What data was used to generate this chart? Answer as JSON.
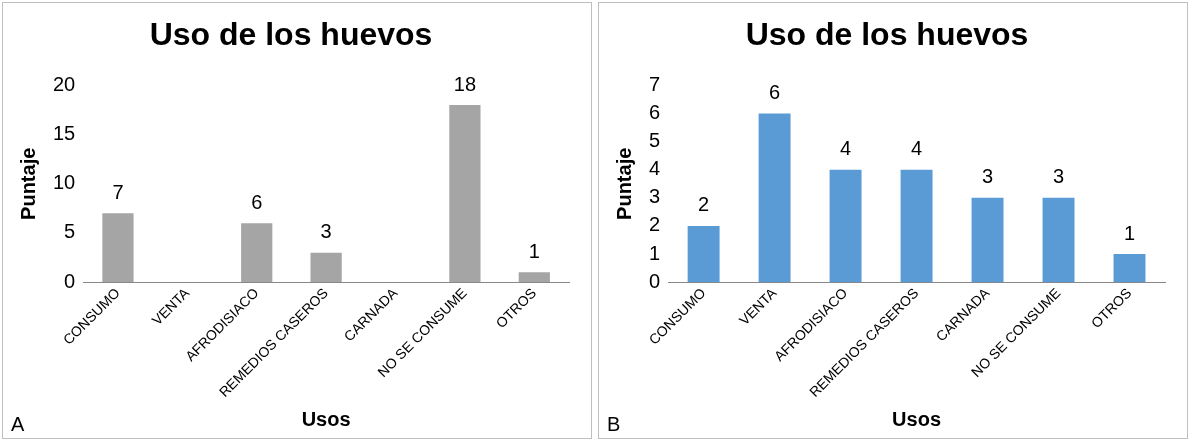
{
  "chart_data": [
    {
      "type": "bar",
      "title": "Uso de los huevos",
      "xlabel": "Usos",
      "ylabel": "Puntaje",
      "categories": [
        "CONSUMO",
        "VENTA",
        "AFRODISIACO",
        "REMEDIOS CASEROS",
        "CARNADA",
        "NO SE CONSUME",
        "OTROS"
      ],
      "values": [
        7,
        null,
        6,
        3,
        null,
        18,
        1
      ],
      "value_labels": [
        "7",
        null,
        "6",
        "3",
        null,
        "18",
        "1"
      ],
      "color": "#a5a5a5",
      "ylim": [
        0,
        20
      ],
      "yticks": [
        0,
        5,
        10,
        15,
        20
      ],
      "grid": false,
      "legend": false,
      "annotations": [
        "A"
      ]
    },
    {
      "type": "bar",
      "title": "Uso de los huevos",
      "xlabel": "Usos",
      "ylabel": "Puntaje",
      "categories": [
        "CONSUMO",
        "VENTA",
        "AFRODISIACO",
        "REMEDIOS CASEROS",
        "CARNADA",
        "NO SE CONSUME",
        "OTROS"
      ],
      "values": [
        2,
        6,
        4,
        4,
        3,
        3,
        1
      ],
      "data_labels": true,
      "color": "#5b9bd5",
      "ylim": [
        0,
        7
      ],
      "yticks": [
        0,
        1,
        2,
        3,
        4,
        5,
        6,
        7
      ],
      "grid": false,
      "legend": false,
      "annotations": [
        "B"
      ]
    }
  ]
}
